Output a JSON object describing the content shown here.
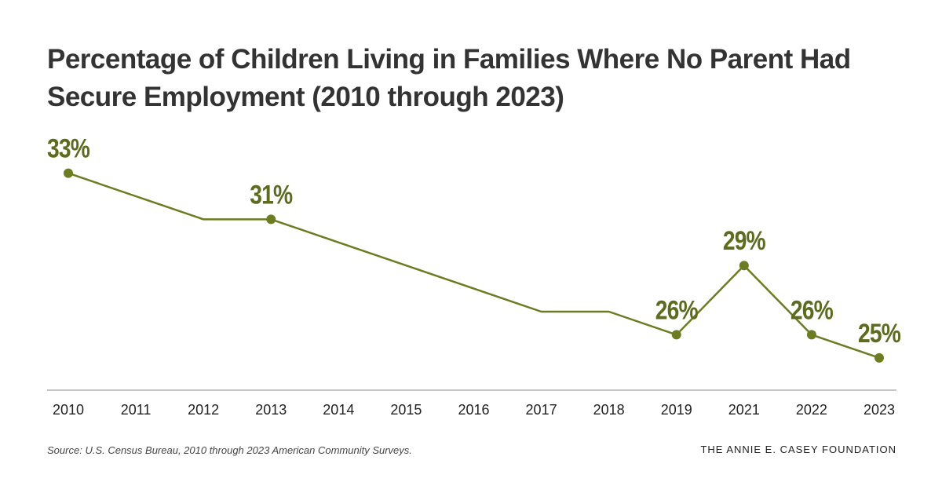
{
  "title_line1": "Percentage of Children Living in Families Where No Parent Had",
  "title_line2": "Secure Employment  (2010 through 2023)",
  "source_label": "Source:",
  "source_text": "U.S. Census Bureau, 2010 through 2023 American Community Surveys.",
  "brand": "THE ANNIE E. CASEY FOUNDATION",
  "colors": {
    "line": "#6b7c22",
    "label": "#5c6b1e",
    "axis": "#888888",
    "tick_text": "#222222"
  },
  "chart_data": {
    "type": "line",
    "title": "Percentage of Children Living in Families Where No Parent Had Secure Employment (2010 through 2023)",
    "xlabel": "",
    "ylabel": "",
    "x": [
      "2010",
      "2011",
      "2012",
      "2013",
      "2014",
      "2015",
      "2016",
      "2017",
      "2018",
      "2019",
      "2021",
      "2022",
      "2023"
    ],
    "values": [
      33,
      32,
      31,
      31,
      30,
      29,
      28,
      27,
      27,
      26,
      29,
      26,
      25
    ],
    "markers": [
      true,
      false,
      false,
      true,
      false,
      false,
      false,
      false,
      false,
      true,
      true,
      true,
      true
    ],
    "data_labels": [
      "33%",
      "",
      "",
      "31%",
      "",
      "",
      "",
      "",
      "",
      "26%",
      "29%",
      "26%",
      "25%"
    ],
    "ylim": [
      23.6,
      33.7
    ],
    "grid": false,
    "legend": "none"
  }
}
